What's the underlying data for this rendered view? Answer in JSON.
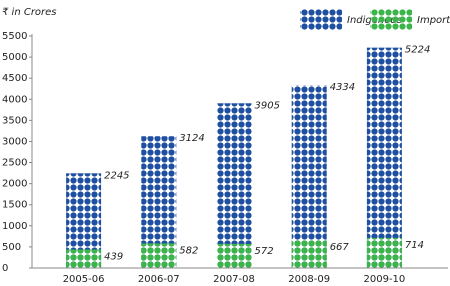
{
  "chart_data": {
    "type": "bar",
    "y_axis_label": "₹ in Crores",
    "categories": [
      "2005-06",
      "2006-07",
      "2007-08",
      "2008-09",
      "2009-10"
    ],
    "series": [
      {
        "name": "Indigenous",
        "color": "#1f4fa0",
        "values": [
          2245,
          3124,
          3905,
          4334,
          5224
        ]
      },
      {
        "name": "Imported",
        "color": "#3bb54a",
        "values": [
          439,
          582,
          572,
          667,
          714
        ]
      }
    ],
    "ylim": [
      0,
      5500
    ],
    "yticks": [
      0,
      500,
      1000,
      1500,
      2000,
      2500,
      3000,
      3500,
      4000,
      4500,
      5000,
      5500
    ]
  }
}
